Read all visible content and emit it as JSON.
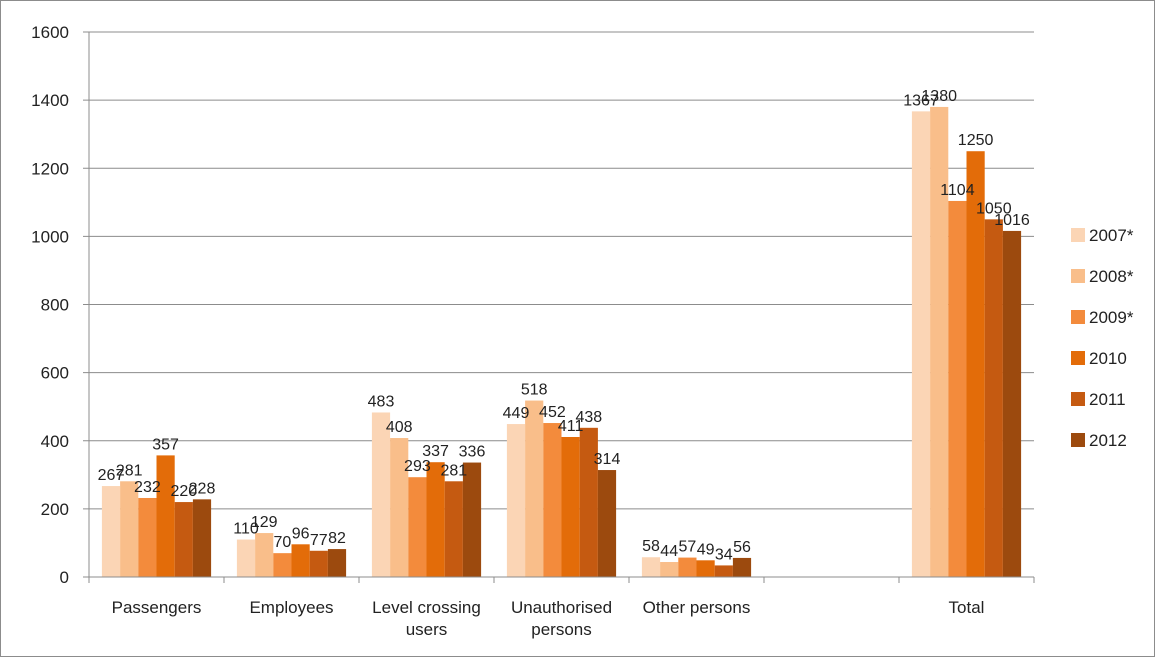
{
  "chart_data": {
    "type": "bar",
    "title": "",
    "xlabel": "",
    "ylabel": "",
    "ylim": [
      0,
      1600
    ],
    "yticks": [
      0,
      200,
      400,
      600,
      800,
      1000,
      1200,
      1400,
      1600
    ],
    "grid": true,
    "legend_position": "right",
    "categories": [
      [
        "Passengers"
      ],
      [
        "Employees"
      ],
      [
        "Level crossing",
        "users"
      ],
      [
        "Unauthorised",
        "persons"
      ],
      [
        "Other persons"
      ],
      [
        ""
      ],
      [
        "Total"
      ]
    ],
    "series": [
      {
        "name": "2007*",
        "color": "#FBD5B5",
        "values": [
          267,
          110,
          483,
          449,
          58,
          null,
          1367
        ]
      },
      {
        "name": "2008*",
        "color": "#F9BE8A",
        "values": [
          281,
          129,
          408,
          518,
          44,
          null,
          1380
        ]
      },
      {
        "name": "2009*",
        "color": "#F38B3C",
        "values": [
          232,
          70,
          293,
          452,
          57,
          null,
          1104
        ]
      },
      {
        "name": "2010",
        "color": "#E36C09",
        "values": [
          357,
          96,
          337,
          411,
          49,
          null,
          1250
        ]
      },
      {
        "name": "2011",
        "color": "#C55A11",
        "values": [
          220,
          77,
          281,
          438,
          34,
          null,
          1050
        ]
      },
      {
        "name": "2012",
        "color": "#9C4A0E",
        "values": [
          228,
          82,
          336,
          314,
          56,
          null,
          1016
        ]
      }
    ]
  }
}
